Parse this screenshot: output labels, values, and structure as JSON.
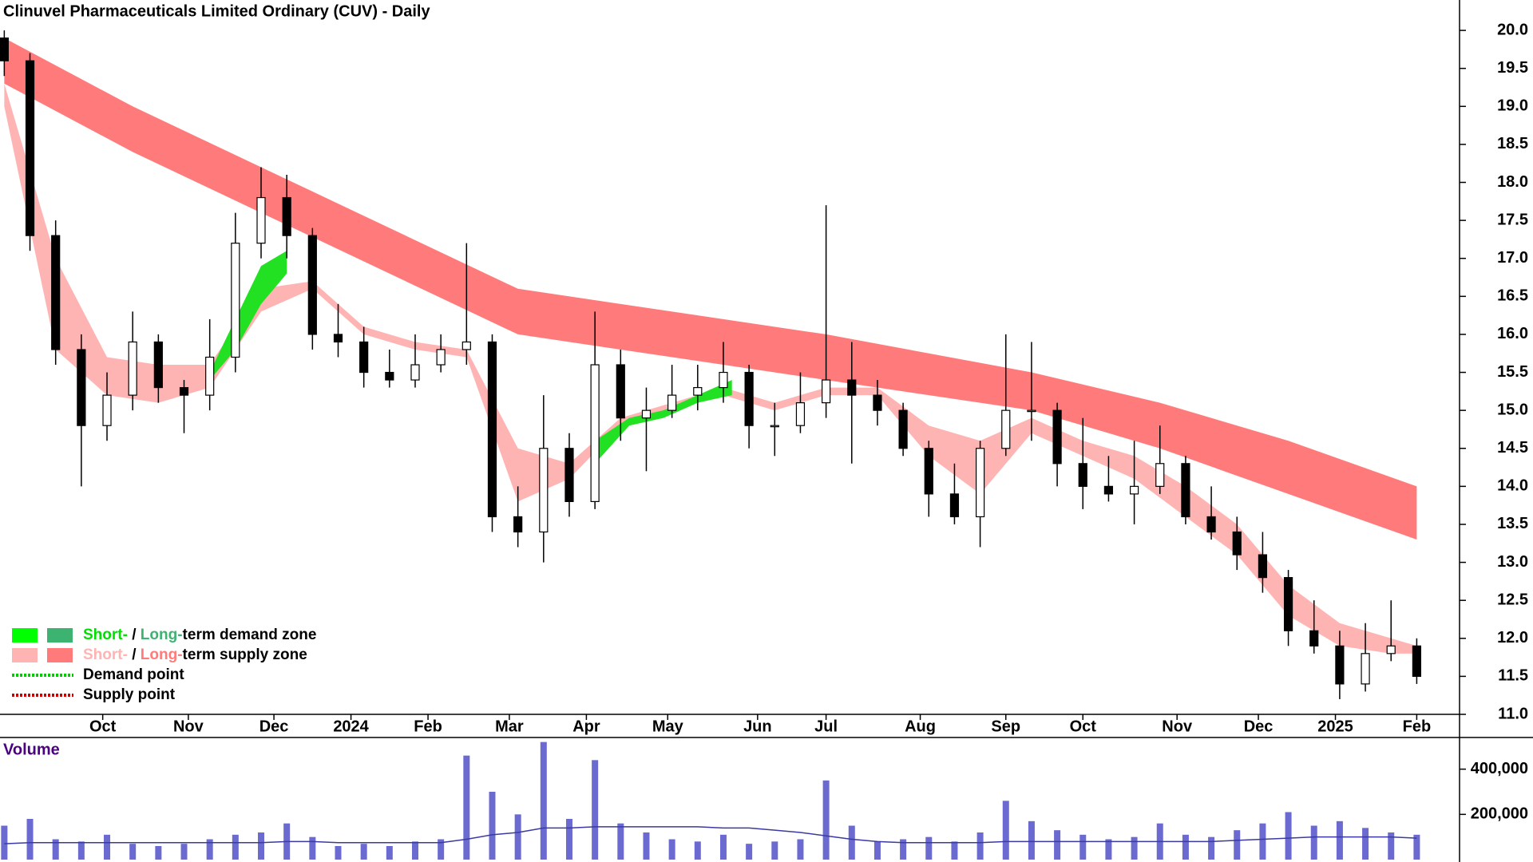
{
  "chart_data": [
    {
      "type": "candlestick",
      "title": "Clinuvel Pharmaceuticals Limited Ordinary (CUV) - Daily",
      "x": [
        0,
        6,
        12,
        18,
        24,
        30,
        36,
        42,
        48,
        54,
        60,
        66,
        72,
        78,
        84,
        90,
        96,
        102,
        108,
        114,
        120,
        126,
        132,
        138,
        144,
        150,
        156,
        162,
        168,
        174,
        180,
        186,
        192,
        198,
        204,
        210,
        216,
        222,
        228,
        234,
        240,
        246,
        252,
        258,
        264,
        270,
        276,
        282,
        288,
        294,
        300,
        306,
        312,
        318,
        324,
        330
      ],
      "open": [
        19.9,
        19.6,
        17.3,
        15.8,
        14.8,
        15.2,
        15.9,
        15.3,
        15.2,
        15.7,
        17.2,
        17.8,
        17.3,
        16.0,
        15.9,
        15.5,
        15.4,
        15.6,
        15.8,
        15.9,
        13.6,
        13.4,
        14.5,
        13.8,
        15.6,
        14.9,
        15.0,
        15.2,
        15.3,
        15.5,
        14.8,
        14.8,
        15.1,
        15.4,
        15.2,
        15.0,
        14.5,
        13.9,
        13.6,
        14.5,
        15.0,
        15.0,
        14.3,
        14.0,
        13.9,
        14.0,
        14.3,
        13.6,
        13.4,
        13.1,
        12.8,
        12.1,
        11.9,
        11.4,
        11.8,
        11.9
      ],
      "high": [
        20.0,
        19.7,
        17.5,
        16.0,
        15.5,
        16.3,
        16.0,
        15.4,
        16.2,
        17.6,
        18.2,
        18.1,
        17.4,
        16.4,
        16.1,
        15.8,
        16.0,
        16.0,
        17.2,
        16.0,
        14.0,
        15.2,
        14.7,
        16.3,
        15.8,
        15.3,
        15.6,
        15.6,
        15.9,
        15.6,
        15.1,
        15.5,
        17.7,
        15.9,
        15.4,
        15.1,
        14.6,
        14.3,
        14.6,
        16.0,
        15.9,
        15.1,
        14.9,
        14.4,
        14.6,
        14.8,
        14.4,
        14.0,
        13.6,
        13.4,
        12.9,
        12.5,
        12.1,
        12.2,
        12.5,
        12.0
      ],
      "low": [
        19.4,
        17.1,
        15.6,
        14.0,
        14.6,
        15.0,
        15.1,
        14.7,
        15.0,
        15.5,
        17.0,
        17.0,
        15.8,
        15.7,
        15.3,
        15.3,
        15.3,
        15.5,
        15.6,
        13.4,
        13.2,
        13.0,
        13.6,
        13.7,
        14.6,
        14.2,
        14.9,
        15.0,
        15.1,
        14.5,
        14.4,
        14.7,
        14.9,
        14.3,
        14.8,
        14.4,
        13.6,
        13.5,
        13.2,
        14.4,
        14.6,
        14.0,
        13.7,
        13.8,
        13.5,
        13.9,
        13.5,
        13.3,
        12.9,
        12.6,
        11.9,
        11.8,
        11.2,
        11.3,
        11.7,
        11.4
      ],
      "close": [
        19.6,
        17.3,
        15.8,
        14.8,
        15.2,
        15.9,
        15.3,
        15.2,
        15.7,
        17.2,
        17.8,
        17.3,
        16.0,
        15.9,
        15.5,
        15.4,
        15.6,
        15.8,
        15.9,
        13.6,
        13.4,
        14.5,
        13.8,
        15.6,
        14.9,
        15.0,
        15.2,
        15.3,
        15.5,
        14.8,
        14.8,
        15.1,
        15.4,
        15.2,
        15.0,
        14.5,
        13.9,
        13.6,
        14.5,
        15.0,
        15.0,
        14.3,
        14.0,
        13.9,
        14.0,
        14.3,
        13.6,
        13.4,
        13.1,
        12.8,
        12.1,
        11.9,
        11.4,
        11.8,
        11.9,
        11.5
      ],
      "up_color": "#ffffff",
      "down_color": "#000000",
      "bands": [
        {
          "color": "#ff7b7b",
          "x": [
            0,
            30,
            60,
            90,
            120,
            192,
            240,
            270,
            300,
            330
          ],
          "upper": [
            19.9,
            19.0,
            18.2,
            17.4,
            16.6,
            16.0,
            15.5,
            15.1,
            14.6,
            14.0
          ],
          "lower": [
            19.3,
            18.4,
            17.6,
            16.8,
            16.0,
            15.4,
            15.0,
            14.5,
            13.9,
            13.3
          ]
        },
        {
          "color": "#ffb4b4",
          "x": [
            0,
            12,
            24,
            36,
            48,
            60,
            72,
            84,
            96,
            108,
            120,
            132,
            144,
            156,
            168,
            180,
            192,
            204,
            216,
            228,
            240,
            252,
            264,
            276,
            288,
            300,
            312,
            324,
            330
          ],
          "upper": [
            19.3,
            17.0,
            15.7,
            15.6,
            15.6,
            16.6,
            16.7,
            16.1,
            15.9,
            15.8,
            14.5,
            14.3,
            14.9,
            15.1,
            15.3,
            15.1,
            15.3,
            15.3,
            14.8,
            14.6,
            14.9,
            14.6,
            14.4,
            14.0,
            13.5,
            12.7,
            12.2,
            12.0,
            11.9
          ],
          "lower": [
            19.0,
            15.8,
            15.2,
            15.1,
            15.3,
            16.3,
            16.6,
            16.0,
            15.8,
            15.7,
            13.8,
            14.1,
            14.8,
            15.0,
            15.2,
            15.0,
            15.2,
            15.2,
            14.4,
            13.9,
            14.7,
            14.4,
            14.1,
            13.6,
            13.1,
            12.3,
            11.9,
            11.8,
            11.8
          ]
        },
        {
          "color": "#22e022",
          "x": [
            48,
            54,
            60,
            66,
            72,
            138,
            146,
            154,
            162,
            170
          ],
          "upper": [
            15.5,
            16.2,
            16.9,
            17.1,
            null,
            14.6,
            14.9,
            15.0,
            15.2,
            15.4
          ],
          "lower": [
            15.4,
            15.8,
            16.4,
            16.8,
            null,
            14.3,
            14.8,
            14.9,
            15.1,
            15.2
          ]
        }
      ],
      "xlim": [
        -1,
        340
      ],
      "ylim": [
        11.0,
        20.4
      ],
      "yticks": [
        {
          "value": 11,
          "label": "11.0"
        },
        11.5,
        {
          "value": 12,
          "label": "12.0"
        },
        12.5,
        {
          "value": 13,
          "label": "13.0"
        },
        13.5,
        {
          "value": 14,
          "label": "14.0"
        },
        14.5,
        {
          "value": 15,
          "label": "15.0"
        },
        15.5,
        {
          "value": 16,
          "label": "16.0"
        },
        16.5,
        {
          "value": 17,
          "label": "17.0"
        },
        17.5,
        {
          "value": 18,
          "label": "18.0"
        },
        18.5,
        {
          "value": 19,
          "label": "19.0"
        },
        19.5,
        {
          "value": 20,
          "label": "20.0"
        }
      ],
      "xticks": [
        {
          "value": 23,
          "label": "Oct"
        },
        {
          "value": 43,
          "label": "Nov"
        },
        {
          "value": 63,
          "label": "Dec"
        },
        {
          "value": 81,
          "label": "2024"
        },
        {
          "value": 99,
          "label": "Feb"
        },
        {
          "value": 118,
          "label": "Mar"
        },
        {
          "value": 136,
          "label": "Apr"
        },
        {
          "value": 155,
          "label": "May"
        },
        {
          "value": 176,
          "label": "Jun"
        },
        {
          "value": 192,
          "label": "Jul"
        },
        {
          "value": 214,
          "label": "Aug"
        },
        {
          "value": 234,
          "label": "Sep"
        },
        {
          "value": 252,
          "label": "Oct"
        },
        {
          "value": 274,
          "label": "Nov"
        },
        {
          "value": 293,
          "label": "Dec"
        },
        {
          "value": 311,
          "label": "2025"
        },
        {
          "value": 330,
          "label": "Feb"
        }
      ],
      "legend": [
        {
          "swatches": [
            "#00ff00",
            "#3cb371"
          ],
          "parts": [
            {
              "text": "Short-",
              "color": "#00e000"
            },
            {
              "text": " / ",
              "color": "#000000"
            },
            {
              "text": "Long-",
              "color": "#3cb371"
            },
            {
              "text": "term demand zone",
              "color": "#000000"
            }
          ]
        },
        {
          "swatches": [
            "#ffb4b4",
            "#ff7b7b"
          ],
          "parts": [
            {
              "text": "Short-",
              "color": "#ffb4b4"
            },
            {
              "text": " / ",
              "color": "#000000"
            },
            {
              "text": "Long-",
              "color": "#ff7b7b"
            },
            {
              "text": "term supply zone",
              "color": "#000000"
            }
          ]
        },
        {
          "line_color": "#00cc00",
          "parts": [
            {
              "text": "Demand point",
              "color": "#000000"
            }
          ]
        },
        {
          "line_color": "#cc0000",
          "parts": [
            {
              "text": "Supply point",
              "color": "#000000"
            }
          ]
        }
      ]
    },
    {
      "type": "bar",
      "title": "Volume",
      "title_color": "#4b0082",
      "values": [
        150000,
        180000,
        90000,
        80000,
        110000,
        70000,
        60000,
        70000,
        90000,
        110000,
        120000,
        160000,
        100000,
        60000,
        70000,
        60000,
        80000,
        90000,
        460000,
        300000,
        200000,
        520000,
        180000,
        440000,
        160000,
        120000,
        90000,
        80000,
        110000,
        70000,
        80000,
        90000,
        350000,
        150000,
        80000,
        90000,
        100000,
        80000,
        120000,
        260000,
        170000,
        130000,
        110000,
        90000,
        100000,
        160000,
        110000,
        100000,
        130000,
        160000,
        210000,
        150000,
        170000,
        140000,
        120000,
        110000
      ],
      "average": [
        70000,
        75000,
        75000,
        75000,
        75000,
        75000,
        75000,
        75000,
        75000,
        75000,
        75000,
        80000,
        80000,
        75000,
        75000,
        75000,
        75000,
        75000,
        90000,
        110000,
        120000,
        140000,
        140000,
        145000,
        145000,
        145000,
        145000,
        145000,
        140000,
        140000,
        130000,
        120000,
        105000,
        90000,
        80000,
        75000,
        75000,
        75000,
        75000,
        80000,
        80000,
        80000,
        80000,
        80000,
        80000,
        80000,
        80000,
        80000,
        85000,
        90000,
        95000,
        100000,
        100000,
        100000,
        100000,
        95000
      ],
      "color": "#6a6ad0",
      "average_color": "#3a3aa0",
      "ylim": [
        0,
        540000
      ],
      "yticks": [
        {
          "value": 200000,
          "label": "200,000"
        },
        {
          "value": 400000,
          "label": "400,000"
        }
      ]
    }
  ]
}
